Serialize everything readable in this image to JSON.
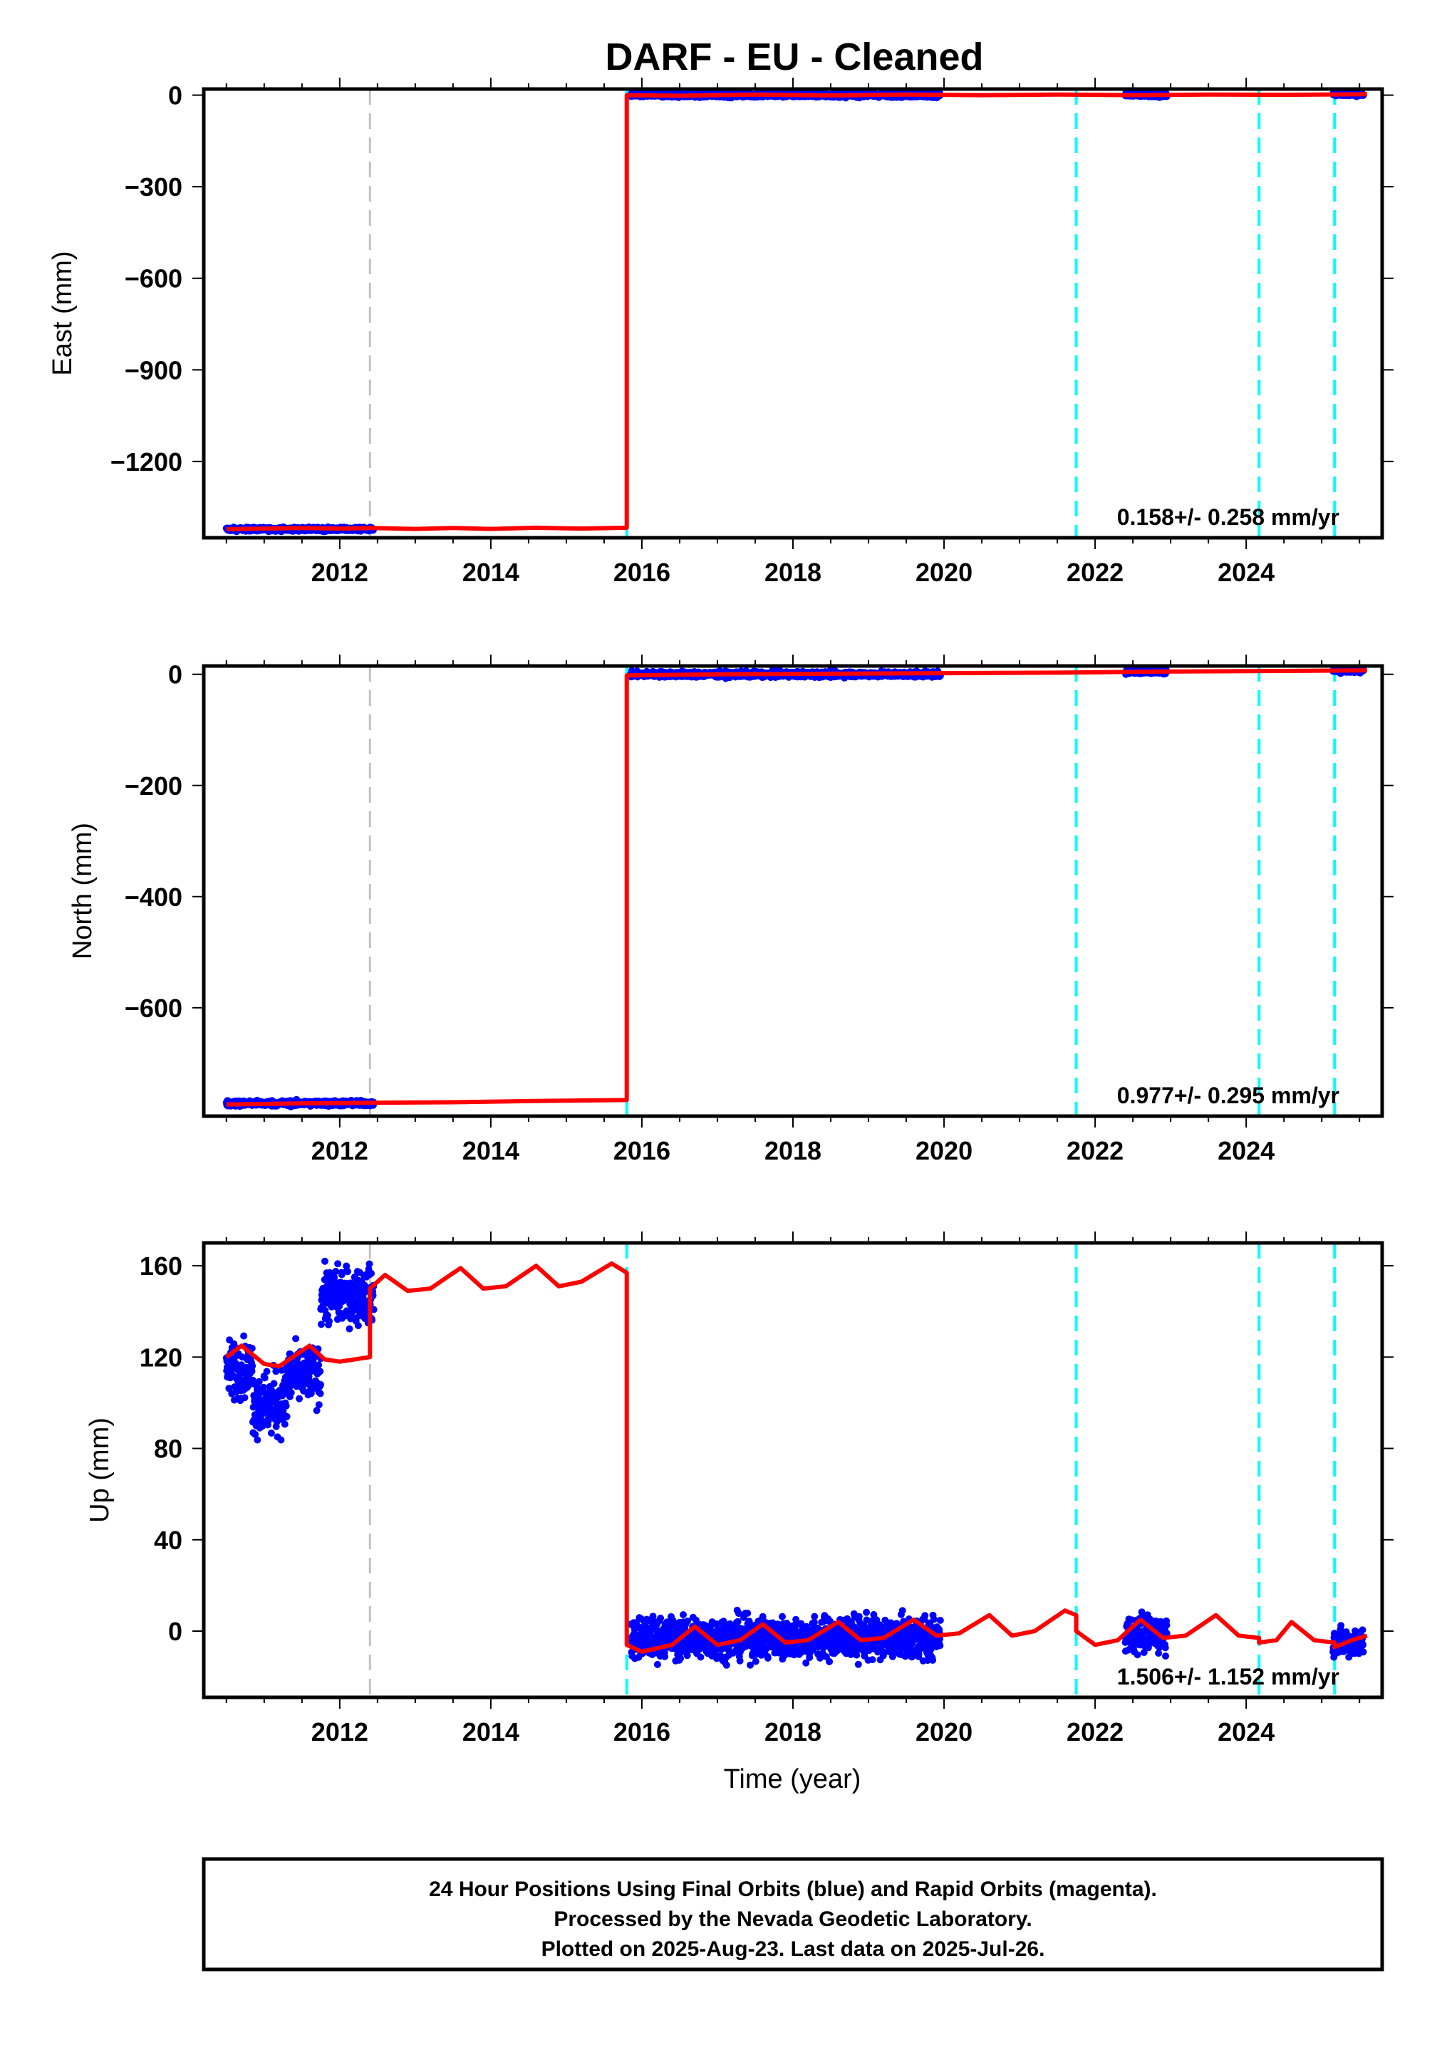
{
  "title": "DARF  - EU - Cleaned",
  "xlabel": "Time (year)",
  "footer": {
    "line1": "24 Hour Positions Using Final Orbits (blue) and Rapid Orbits (magenta).",
    "line2": "Processed by the Nevada Geodetic Laboratory.",
    "line3": "Plotted on 2025-Aug-23. Last data on 2025-Jul-26."
  },
  "colors": {
    "data": "#0000ff",
    "model": "#ff0000",
    "equipment_change": "#c0c0c0",
    "earthquake": "#00ffff"
  },
  "chart_data": [
    {
      "type": "scatter",
      "ylabel": "East (mm)",
      "xlim": [
        2010.2,
        2025.8
      ],
      "ylim": [
        -1450,
        20
      ],
      "x_ticks": [
        2012,
        2014,
        2016,
        2018,
        2020,
        2022,
        2024
      ],
      "y_ticks": [
        0,
        -300,
        -600,
        -900,
        -1200
      ],
      "y_tick_labels": [
        "0",
        "−300",
        "−600",
        "−900",
        "−1200"
      ],
      "rate_label": "0.158+/- 0.258 mm/yr",
      "vlines_gray": [
        2012.4
      ],
      "vlines_cyan": [
        2015.8,
        2021.75,
        2024.17,
        2025.17
      ],
      "data_segments": [
        {
          "x_start": 2010.5,
          "x_end": 2012.45,
          "y": -1422,
          "scatter": 6
        },
        {
          "x_start": 2015.85,
          "x_end": 2019.95,
          "y": 0,
          "scatter": 7
        },
        {
          "x_start": 2022.4,
          "x_end": 2022.95,
          "y": 0,
          "scatter": 6
        },
        {
          "x_start": 2025.15,
          "x_end": 2025.55,
          "y": 2,
          "scatter": 5
        }
      ],
      "model": [
        [
          2010.5,
          -1422
        ],
        [
          2011.0,
          -1420
        ],
        [
          2011.5,
          -1418
        ],
        [
          2012.0,
          -1420
        ],
        [
          2012.4,
          -1418
        ],
        [
          2013.0,
          -1421
        ],
        [
          2013.5,
          -1418
        ],
        [
          2014.0,
          -1421
        ],
        [
          2014.6,
          -1417
        ],
        [
          2015.2,
          -1420
        ],
        [
          2015.8,
          -1417
        ],
        [
          2015.8,
          0
        ],
        [
          2016.5,
          -2
        ],
        [
          2017.5,
          2
        ],
        [
          2018.5,
          -1
        ],
        [
          2019.5,
          2
        ],
        [
          2020.5,
          0
        ],
        [
          2021.5,
          2
        ],
        [
          2022.5,
          0
        ],
        [
          2023.5,
          2
        ],
        [
          2024.5,
          1
        ],
        [
          2025.6,
          3
        ]
      ]
    },
    {
      "type": "scatter",
      "ylabel": "North (mm)",
      "xlim": [
        2010.2,
        2025.8
      ],
      "ylim": [
        -795,
        15
      ],
      "x_ticks": [
        2012,
        2014,
        2016,
        2018,
        2020,
        2022,
        2024
      ],
      "y_ticks": [
        0,
        -200,
        -400,
        -600
      ],
      "y_tick_labels": [
        "0",
        "−200",
        "−400",
        "−600"
      ],
      "rate_label": "0.977+/- 0.295 mm/yr",
      "vlines_gray": [
        2012.4
      ],
      "vlines_cyan": [
        2015.8,
        2021.75,
        2024.17,
        2025.17
      ],
      "data_segments": [
        {
          "x_start": 2010.5,
          "x_end": 2012.45,
          "y": -772,
          "scatter": 5
        },
        {
          "x_start": 2015.85,
          "x_end": 2019.95,
          "y": 0,
          "scatter": 5
        },
        {
          "x_start": 2022.4,
          "x_end": 2022.95,
          "y": 5,
          "scatter": 4
        },
        {
          "x_start": 2025.15,
          "x_end": 2025.55,
          "y": 7,
          "scatter": 4
        }
      ],
      "model": [
        [
          2010.5,
          -774
        ],
        [
          2011.5,
          -772
        ],
        [
          2012.4,
          -771
        ],
        [
          2013.5,
          -770
        ],
        [
          2014.5,
          -768
        ],
        [
          2015.8,
          -766
        ],
        [
          2015.8,
          -2
        ],
        [
          2017.0,
          0
        ],
        [
          2018.5,
          1
        ],
        [
          2020.0,
          2
        ],
        [
          2021.5,
          3
        ],
        [
          2023.0,
          5
        ],
        [
          2024.5,
          6
        ],
        [
          2025.6,
          7
        ]
      ]
    },
    {
      "type": "scatter",
      "ylabel": "Up (mm)",
      "xlim": [
        2010.2,
        2025.8
      ],
      "ylim": [
        -29,
        170
      ],
      "x_ticks": [
        2012,
        2014,
        2016,
        2018,
        2020,
        2022,
        2024
      ],
      "y_ticks": [
        160,
        120,
        80,
        40,
        0
      ],
      "y_tick_labels": [
        "160",
        "120",
        "80",
        "40",
        "0"
      ],
      "rate_label": "1.506+/- 1.152 mm/yr",
      "vlines_gray": [
        2012.4
      ],
      "vlines_cyan": [
        2015.8,
        2021.75,
        2024.17,
        2025.17
      ],
      "data_segments": [
        {
          "x_start": 2010.5,
          "x_end": 2010.85,
          "y": 115,
          "scatter": 12
        },
        {
          "x_start": 2010.85,
          "x_end": 2011.3,
          "y": 100,
          "scatter": 14
        },
        {
          "x_start": 2011.3,
          "x_end": 2011.75,
          "y": 112,
          "scatter": 12
        },
        {
          "x_start": 2011.75,
          "x_end": 2012.45,
          "y": 147,
          "scatter": 12
        },
        {
          "x_start": 2015.85,
          "x_end": 2019.95,
          "y": -3,
          "scatter": 9
        },
        {
          "x_start": 2022.4,
          "x_end": 2022.95,
          "y": -1,
          "scatter": 8
        },
        {
          "x_start": 2025.15,
          "x_end": 2025.55,
          "y": -5,
          "scatter": 6
        }
      ],
      "model": [
        [
          2010.5,
          120
        ],
        [
          2010.7,
          125
        ],
        [
          2011.0,
          117
        ],
        [
          2011.2,
          116
        ],
        [
          2011.6,
          125
        ],
        [
          2011.8,
          119
        ],
        [
          2012.0,
          118
        ],
        [
          2012.4,
          120
        ],
        [
          2012.4,
          150
        ],
        [
          2012.6,
          156
        ],
        [
          2012.9,
          149
        ],
        [
          2013.2,
          150
        ],
        [
          2013.6,
          159
        ],
        [
          2013.9,
          150
        ],
        [
          2014.2,
          151
        ],
        [
          2014.6,
          160
        ],
        [
          2014.9,
          151
        ],
        [
          2015.2,
          153
        ],
        [
          2015.6,
          161
        ],
        [
          2015.8,
          157
        ],
        [
          2015.8,
          -6
        ],
        [
          2016.0,
          -9
        ],
        [
          2016.4,
          -6
        ],
        [
          2016.7,
          2
        ],
        [
          2017.0,
          -6
        ],
        [
          2017.3,
          -4
        ],
        [
          2017.6,
          3
        ],
        [
          2017.9,
          -5
        ],
        [
          2018.2,
          -4
        ],
        [
          2018.6,
          4
        ],
        [
          2018.9,
          -4
        ],
        [
          2019.2,
          -3
        ],
        [
          2019.6,
          5
        ],
        [
          2019.9,
          -2
        ],
        [
          2020.2,
          -1
        ],
        [
          2020.6,
          7
        ],
        [
          2020.9,
          -2
        ],
        [
          2021.2,
          0
        ],
        [
          2021.6,
          9
        ],
        [
          2021.75,
          7
        ],
        [
          2021.75,
          0
        ],
        [
          2022.0,
          -6
        ],
        [
          2022.3,
          -4
        ],
        [
          2022.6,
          5
        ],
        [
          2022.9,
          -3
        ],
        [
          2023.2,
          -2
        ],
        [
          2023.6,
          7
        ],
        [
          2023.9,
          -2
        ],
        [
          2024.17,
          -3
        ],
        [
          2024.17,
          -5
        ],
        [
          2024.4,
          -4
        ],
        [
          2024.6,
          4
        ],
        [
          2024.9,
          -4
        ],
        [
          2025.17,
          -5
        ],
        [
          2025.17,
          -7
        ],
        [
          2025.4,
          -4
        ],
        [
          2025.6,
          -2
        ]
      ]
    }
  ]
}
